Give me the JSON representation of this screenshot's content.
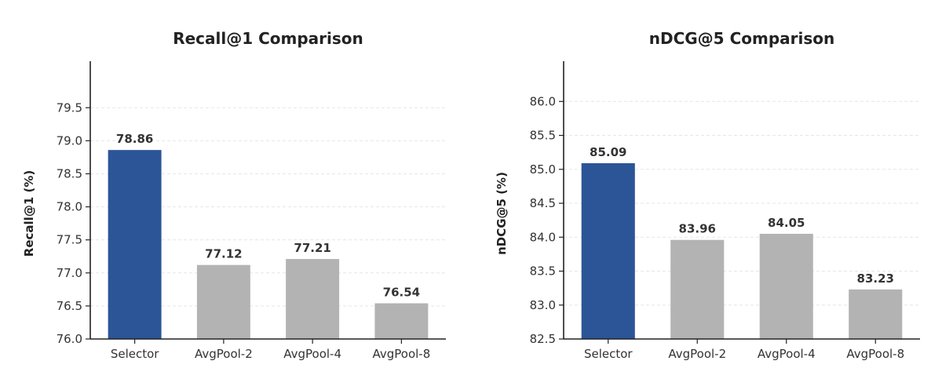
{
  "chart_data": [
    {
      "type": "bar",
      "title": "Recall@1 Comparison",
      "ylabel": "Recall@1 (%)",
      "xlabel": "",
      "categories": [
        "Selector",
        "AvgPool-2",
        "AvgPool-4",
        "AvgPool-8"
      ],
      "values": [
        78.86,
        77.12,
        77.21,
        76.54
      ],
      "value_labels": [
        "78.86",
        "77.12",
        "77.21",
        "76.54"
      ],
      "ylim": [
        76.0,
        79.8
      ],
      "yticks": [
        76.0,
        76.5,
        77.0,
        77.5,
        78.0,
        78.5,
        79.0,
        79.5
      ],
      "ytick_labels": [
        "76.0",
        "76.5",
        "77.0",
        "77.5",
        "78.0",
        "78.5",
        "79.0",
        "79.5"
      ],
      "colors": [
        "#2b5597",
        "#b3b3b3",
        "#b3b3b3",
        "#b3b3b3"
      ],
      "grid": "y-dashed",
      "legend": "none"
    },
    {
      "type": "bar",
      "title": "nDCG@5 Comparison",
      "ylabel": "nDCG@5 (%)",
      "xlabel": "",
      "categories": [
        "Selector",
        "AvgPool-2",
        "AvgPool-4",
        "AvgPool-8"
      ],
      "values": [
        85.09,
        83.96,
        84.05,
        83.23
      ],
      "value_labels": [
        "85.09",
        "83.96",
        "84.05",
        "83.23"
      ],
      "ylim": [
        82.5,
        86.2
      ],
      "yticks": [
        82.5,
        83.0,
        83.5,
        84.0,
        84.5,
        85.0,
        85.5,
        86.0
      ],
      "ytick_labels": [
        "82.5",
        "83.0",
        "83.5",
        "84.0",
        "84.5",
        "85.0",
        "85.5",
        "86.0"
      ],
      "colors": [
        "#2b5597",
        "#b3b3b3",
        "#b3b3b3",
        "#b3b3b3"
      ],
      "grid": "y-dashed",
      "legend": "none"
    }
  ]
}
